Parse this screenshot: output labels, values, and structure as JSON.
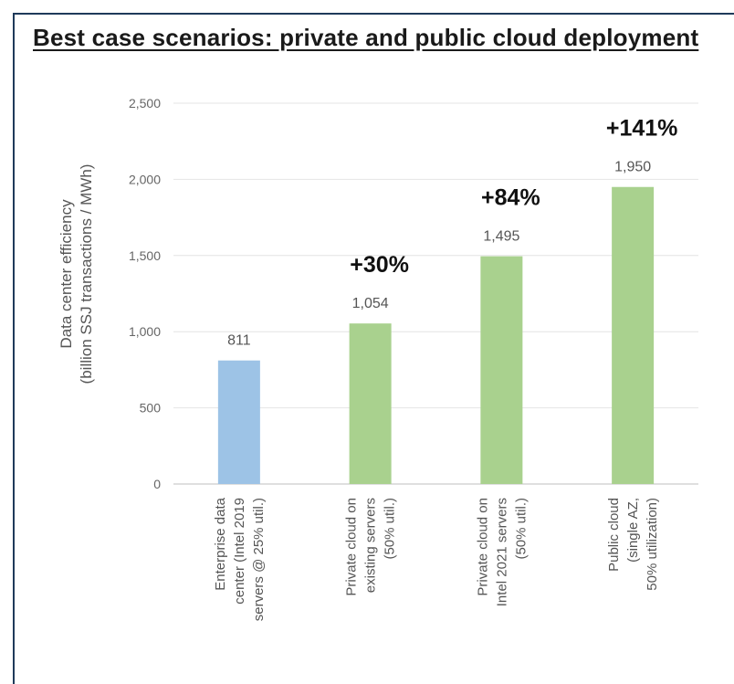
{
  "title": "Best case scenarios: private and public cloud deployment",
  "chart_data": {
    "type": "bar",
    "ylabel": "Data center efficiency",
    "ylabel_sub": "(billion SSJ transactions / MWh)",
    "ylim": [
      0,
      2500
    ],
    "yticks": [
      0,
      500,
      1000,
      1500,
      2000,
      2500
    ],
    "ytick_labels": [
      "0",
      "500",
      "1,000",
      "1,500",
      "2,000",
      "2,500"
    ],
    "grid": true,
    "categories": [
      [
        "Enterprise data",
        "center (Intel 2019",
        "servers @ 25% util.)"
      ],
      [
        "Private cloud on",
        "existing servers",
        "(50% util.)"
      ],
      [
        "Private cloud on",
        "Intel 2021 servers",
        "(50% util.)"
      ],
      [
        "Public cloud",
        "(single AZ,",
        "50% utilization)"
      ]
    ],
    "values": [
      811,
      1054,
      1495,
      1950
    ],
    "value_labels": [
      "811",
      "1,054",
      "1,495",
      "1,950"
    ],
    "pct_labels": [
      "",
      "+30%",
      "+84%",
      "+141%"
    ],
    "colors": [
      "#9dc3e6",
      "#a9d18e",
      "#a9d18e",
      "#a9d18e"
    ]
  }
}
